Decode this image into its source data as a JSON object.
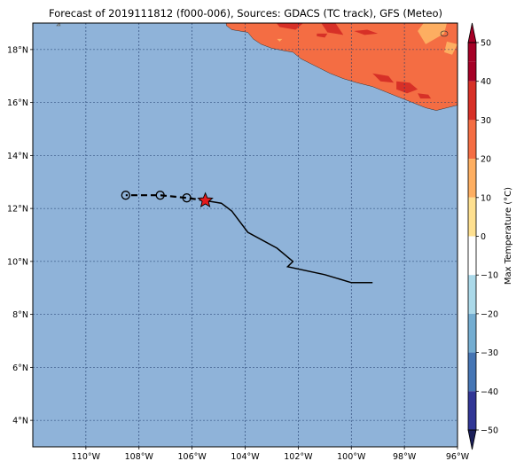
{
  "title": "Forecast of 2019111812 (f000-006), Sources: GDACS (TC track), GFS (Meteo)",
  "map": {
    "lon_range": [
      -112,
      -96
    ],
    "lat_range": [
      3,
      19
    ],
    "ocean_color": "#8fb3d9",
    "land_color": "#f46d43",
    "land_hot_color": "#d73027",
    "land_warm_color": "#fdae61",
    "grid_color": "#1f3b6b",
    "lon_ticks": [
      {
        "value": -110,
        "label": "110°W"
      },
      {
        "value": -108,
        "label": "108°W"
      },
      {
        "value": -106,
        "label": "106°W"
      },
      {
        "value": -104,
        "label": "104°W"
      },
      {
        "value": -102,
        "label": "102°W"
      },
      {
        "value": -100,
        "label": "100°W"
      },
      {
        "value": -98,
        "label": "98°W"
      },
      {
        "value": -96,
        "label": "96°W"
      }
    ],
    "lat_ticks": [
      {
        "value": 4,
        "label": "4°N"
      },
      {
        "value": 6,
        "label": "6°N"
      },
      {
        "value": 8,
        "label": "8°N"
      },
      {
        "value": 10,
        "label": "10°N"
      },
      {
        "value": 12,
        "label": "12°N"
      },
      {
        "value": 14,
        "label": "14°N"
      },
      {
        "value": 16,
        "label": "16°N"
      },
      {
        "value": 18,
        "label": "18°N"
      }
    ]
  },
  "track": {
    "observed": [
      [
        -99.2,
        9.2
      ],
      [
        -100.0,
        9.2
      ],
      [
        -101.0,
        9.5
      ],
      [
        -102.4,
        9.8
      ],
      [
        -102.2,
        10.0
      ],
      [
        -102.8,
        10.5
      ],
      [
        -103.9,
        11.1
      ],
      [
        -104.5,
        11.9
      ],
      [
        -104.9,
        12.2
      ],
      [
        -105.5,
        12.3
      ]
    ],
    "current": [
      -105.5,
      12.3
    ],
    "forecast": [
      [
        -105.5,
        12.3
      ],
      [
        -106.2,
        12.4
      ],
      [
        -107.2,
        12.5
      ],
      [
        -108.5,
        12.5
      ]
    ],
    "forecast_points": [
      [
        -106.2,
        12.4
      ],
      [
        -107.2,
        12.5
      ],
      [
        -108.5,
        12.5
      ]
    ],
    "star_color": "#e31a1c"
  },
  "colorbar": {
    "label": "Max Temperature (°C)",
    "ticks": [
      50,
      40,
      30,
      20,
      10,
      0,
      -10,
      -20,
      -30,
      -40,
      -50
    ],
    "bands": [
      {
        "from": 45,
        "to": 50,
        "color": "#a50026"
      },
      {
        "from": 40,
        "to": 45,
        "color": "#a50026"
      },
      {
        "from": 30,
        "to": 40,
        "color": "#d73027"
      },
      {
        "from": 20,
        "to": 30,
        "color": "#f46d43"
      },
      {
        "from": 10,
        "to": 20,
        "color": "#fdae61"
      },
      {
        "from": 0,
        "to": 10,
        "color": "#fee090"
      },
      {
        "from": -10,
        "to": 0,
        "color": "#ffffff"
      },
      {
        "from": -20,
        "to": -10,
        "color": "#abd9e9"
      },
      {
        "from": -30,
        "to": -20,
        "color": "#74add1"
      },
      {
        "from": -40,
        "to": -30,
        "color": "#4575b4"
      },
      {
        "from": -50,
        "to": -40,
        "color": "#313695"
      }
    ]
  }
}
